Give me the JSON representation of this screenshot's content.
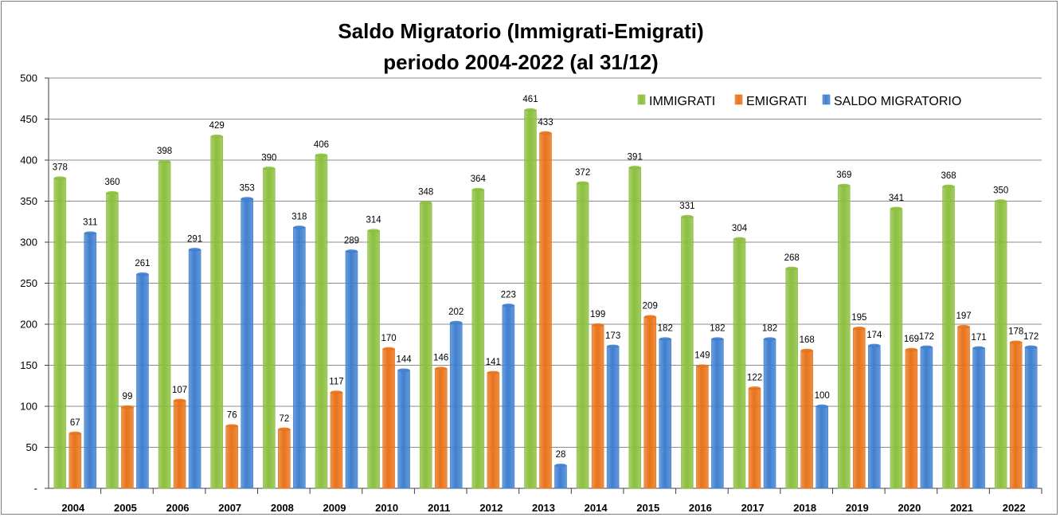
{
  "chart_data": {
    "type": "bar",
    "title_line1": "Saldo Migratorio (Immigrati-Emigrati)",
    "title_line2": "periodo 2004-2022 (al 31/12)",
    "categories": [
      "2004",
      "2005",
      "2006",
      "2007",
      "2008",
      "2009",
      "2010",
      "2011",
      "2012",
      "2013",
      "2014",
      "2015",
      "2016",
      "2017",
      "2018",
      "2019",
      "2020",
      "2021",
      "2022"
    ],
    "series": [
      {
        "name": "IMMIGRATI",
        "color": "#8cbf3f",
        "values": [
          378,
          360,
          398,
          429,
          390,
          406,
          314,
          348,
          364,
          461,
          372,
          391,
          331,
          304,
          268,
          369,
          341,
          368,
          350
        ]
      },
      {
        "name": "EMIGRATI",
        "color": "#e8731a",
        "values": [
          67,
          99,
          107,
          76,
          72,
          117,
          170,
          146,
          141,
          433,
          199,
          209,
          149,
          122,
          168,
          195,
          169,
          197,
          178
        ]
      },
      {
        "name": "SALDO MIGRATORIO",
        "color": "#3f7fcf",
        "values": [
          311,
          261,
          291,
          353,
          318,
          289,
          144,
          202,
          223,
          28,
          173,
          182,
          182,
          182,
          100,
          174,
          172,
          171,
          172
        ]
      }
    ],
    "ylim": [
      0,
      500
    ],
    "yticks": [
      0,
      50,
      100,
      150,
      200,
      250,
      300,
      350,
      400,
      450,
      500
    ],
    "ytick_labels": [
      "-",
      "50",
      "100",
      "150",
      "200",
      "250",
      "300",
      "350",
      "400",
      "450",
      "500"
    ],
    "grid": true,
    "legend_position": "top-right"
  }
}
